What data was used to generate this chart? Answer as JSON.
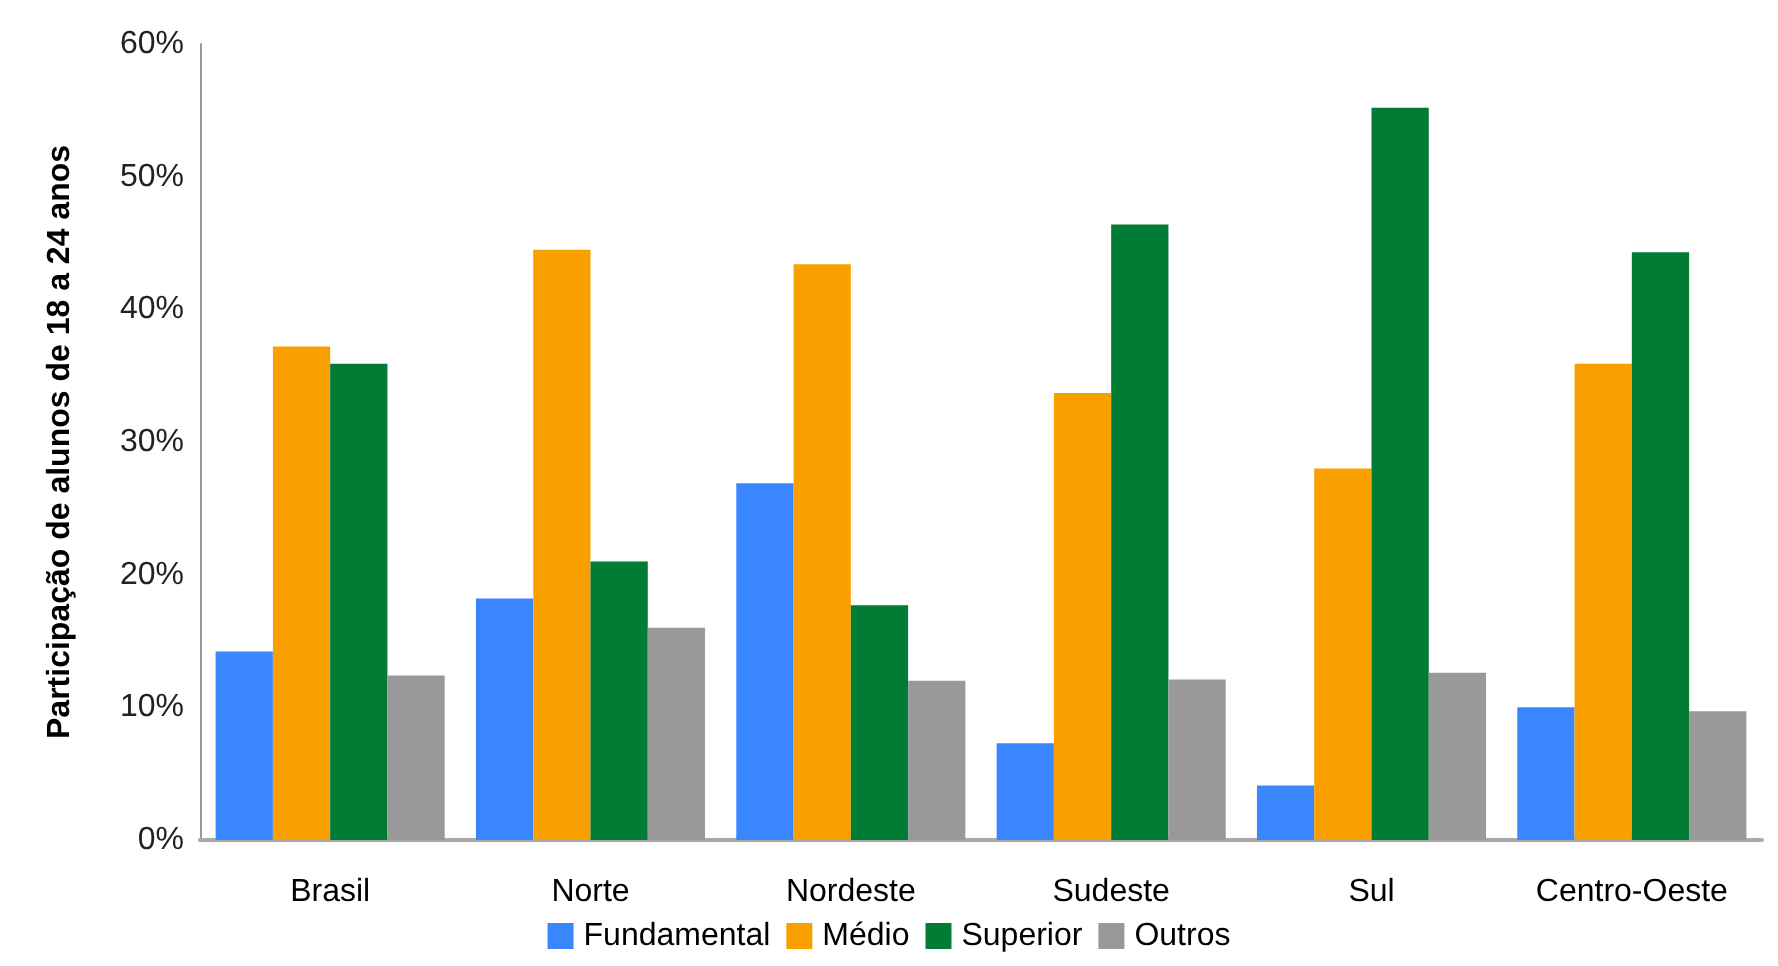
{
  "chart_data": {
    "type": "bar",
    "ylabel": "Participação de alunos de 18 a 24 anos",
    "categories": [
      "Brasil",
      "Norte",
      "Nordeste",
      "Sudeste",
      "Sul",
      "Centro-Oeste"
    ],
    "series": [
      {
        "name": "Fundamental",
        "color": "#3a86ff",
        "values": [
          14.2,
          18.2,
          26.9,
          7.3,
          4.1,
          10.0
        ]
      },
      {
        "name": "Médio",
        "color": "#f9a000",
        "values": [
          37.2,
          44.5,
          43.4,
          33.7,
          28.0,
          35.9
        ]
      },
      {
        "name": "Superior",
        "color": "#007c35",
        "values": [
          35.9,
          21.0,
          17.7,
          46.4,
          55.2,
          44.3
        ]
      },
      {
        "name": "Outros",
        "color": "#999999",
        "values": [
          12.4,
          16.0,
          12.0,
          12.1,
          12.6,
          9.7
        ]
      }
    ],
    "ylim": [
      0,
      60
    ],
    "yticks": [
      {
        "value": 0,
        "label": "0%"
      },
      {
        "value": 10,
        "label": "10%"
      },
      {
        "value": 20,
        "label": "20%"
      },
      {
        "value": 30,
        "label": "30%"
      },
      {
        "value": 40,
        "label": "40%"
      },
      {
        "value": 50,
        "label": "50%"
      },
      {
        "value": 60,
        "label": "60%"
      }
    ],
    "grid": false,
    "legend": "bottom"
  }
}
